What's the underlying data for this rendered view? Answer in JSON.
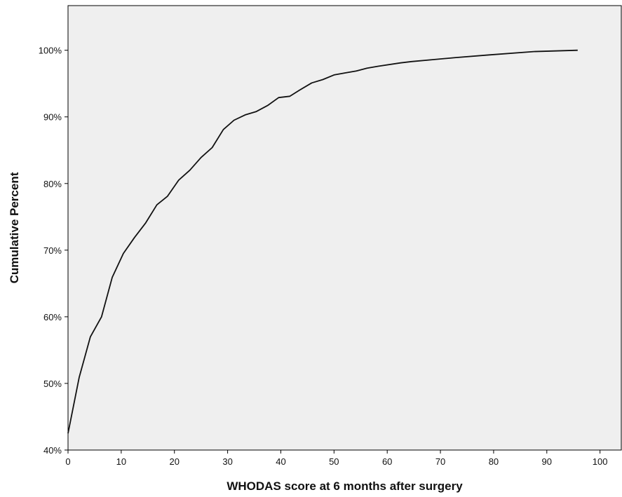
{
  "chart_data": {
    "type": "line",
    "title": "",
    "xlabel": "WHODAS score at 6 months after surgery",
    "ylabel": "Cumulative Percent",
    "xlim": [
      0,
      104
    ],
    "ylim": [
      40,
      106.7
    ],
    "x_ticks": [
      0,
      10,
      20,
      30,
      40,
      50,
      60,
      70,
      80,
      90,
      100
    ],
    "x_tick_labels": [
      "0",
      "10",
      "20",
      "30",
      "40",
      "50",
      "60",
      "70",
      "80",
      "90",
      "100"
    ],
    "y_ticks": [
      40,
      50,
      60,
      70,
      80,
      90,
      100
    ],
    "y_tick_labels": [
      "40%",
      "50%",
      "60%",
      "70%",
      "80%",
      "90%",
      "100%"
    ],
    "grid": false,
    "legend": "none",
    "colors": {
      "plot_background": "#efefef",
      "line": "#111111",
      "frame": "#000000"
    },
    "series": [
      {
        "x": [
          0,
          2.1,
          4.2,
          6.3,
          8.3,
          10.4,
          12.5,
          14.6,
          16.7,
          18.7,
          20.8,
          22.9,
          25,
          27.1,
          29.2,
          31.2,
          33.3,
          35.4,
          37.5,
          39.6,
          41.7,
          43.7,
          45.8,
          47.9,
          50,
          52.1,
          54.2,
          56.2,
          58.3,
          62.5,
          64.6,
          68.7,
          72.9,
          79.2,
          87.5,
          95.8
        ],
        "y": [
          42.5,
          50.9,
          57,
          60,
          65.9,
          69.5,
          71.9,
          74.1,
          76.8,
          78.1,
          80.5,
          82,
          83.9,
          85.4,
          88.1,
          89.5,
          90.3,
          90.8,
          91.7,
          92.9,
          93.1,
          94.1,
          95.1,
          95.6,
          96.3,
          96.6,
          96.9,
          97.3,
          97.6,
          98.1,
          98.3,
          98.6,
          98.9,
          99.3,
          99.8,
          100
        ]
      }
    ]
  }
}
